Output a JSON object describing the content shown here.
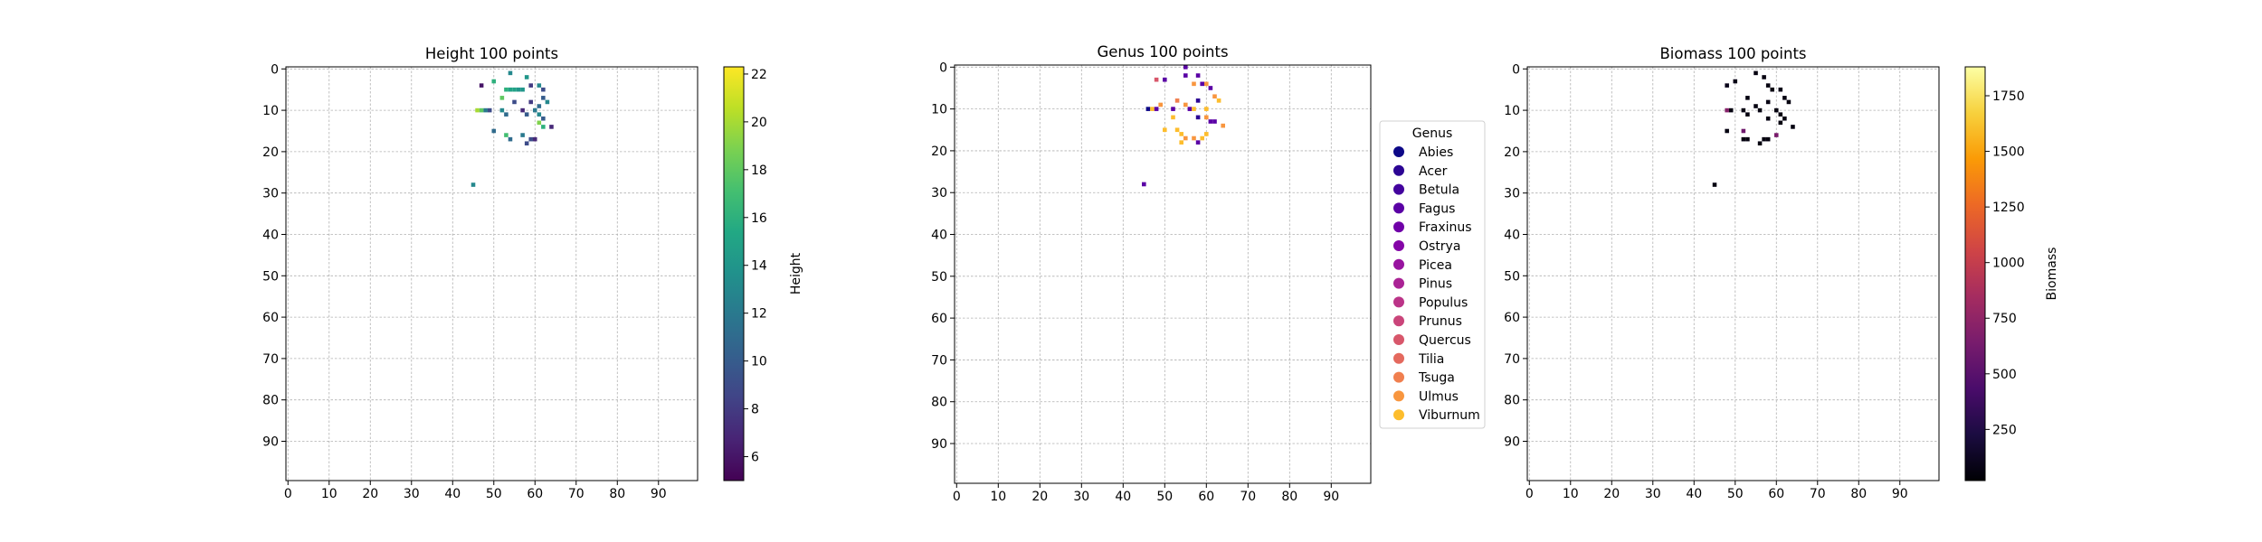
{
  "chart_data": [
    {
      "type": "heatmap",
      "title": "Height 100 points",
      "xlim": [
        0,
        100
      ],
      "ylim": [
        0,
        100
      ],
      "y_inverted": true,
      "xticks": [
        0,
        10,
        20,
        30,
        40,
        50,
        60,
        70,
        80,
        90
      ],
      "yticks": [
        0,
        10,
        20,
        30,
        40,
        50,
        60,
        70,
        80,
        90
      ],
      "grid": true,
      "colormap": "viridis",
      "colorbar": {
        "label": "Height",
        "min": 5,
        "max": 22.3,
        "ticks": [
          6,
          8,
          10,
          12,
          14,
          16,
          18,
          20,
          22
        ]
      },
      "cells": [
        {
          "x": 53,
          "y": 5,
          "value": 16
        },
        {
          "x": 54,
          "y": 5,
          "value": 15
        },
        {
          "x": 55,
          "y": 5,
          "value": 15
        },
        {
          "x": 56,
          "y": 5,
          "value": 14
        },
        {
          "x": 57,
          "y": 5,
          "value": 14
        },
        {
          "x": 54,
          "y": 1,
          "value": 13
        },
        {
          "x": 50,
          "y": 3,
          "value": 16
        },
        {
          "x": 47,
          "y": 4,
          "value": 6
        },
        {
          "x": 58,
          "y": 2,
          "value": 14
        },
        {
          "x": 59,
          "y": 4,
          "value": 8
        },
        {
          "x": 61,
          "y": 4,
          "value": 13
        },
        {
          "x": 55,
          "y": 8,
          "value": 9
        },
        {
          "x": 59,
          "y": 8,
          "value": 8
        },
        {
          "x": 62,
          "y": 5,
          "value": 9
        },
        {
          "x": 62,
          "y": 7,
          "value": 10
        },
        {
          "x": 63,
          "y": 8,
          "value": 13
        },
        {
          "x": 46,
          "y": 10,
          "value": 20
        },
        {
          "x": 47,
          "y": 10,
          "value": 18
        },
        {
          "x": 48,
          "y": 10,
          "value": 12
        },
        {
          "x": 49,
          "y": 10,
          "value": 9
        },
        {
          "x": 52,
          "y": 7,
          "value": 18
        },
        {
          "x": 52,
          "y": 10,
          "value": 13
        },
        {
          "x": 53,
          "y": 11,
          "value": 11
        },
        {
          "x": 57,
          "y": 10,
          "value": 7
        },
        {
          "x": 58,
          "y": 11,
          "value": 10
        },
        {
          "x": 60,
          "y": 10,
          "value": 12
        },
        {
          "x": 61,
          "y": 9,
          "value": 11
        },
        {
          "x": 61,
          "y": 11,
          "value": 13
        },
        {
          "x": 62,
          "y": 12,
          "value": 10
        },
        {
          "x": 61,
          "y": 13,
          "value": 19
        },
        {
          "x": 62,
          "y": 14,
          "value": 16
        },
        {
          "x": 64,
          "y": 14,
          "value": 7
        },
        {
          "x": 50,
          "y": 15,
          "value": 11
        },
        {
          "x": 53,
          "y": 16,
          "value": 17
        },
        {
          "x": 54,
          "y": 17,
          "value": 11
        },
        {
          "x": 57,
          "y": 16,
          "value": 12
        },
        {
          "x": 58,
          "y": 18,
          "value": 9
        },
        {
          "x": 59,
          "y": 17,
          "value": 9
        },
        {
          "x": 60,
          "y": 17,
          "value": 7
        },
        {
          "x": 45,
          "y": 28,
          "value": 13
        }
      ]
    },
    {
      "type": "heatmap",
      "title": "Genus 100 points",
      "xlim": [
        0,
        100
      ],
      "ylim": [
        0,
        100
      ],
      "y_inverted": true,
      "xticks": [
        0,
        10,
        20,
        30,
        40,
        50,
        60,
        70,
        80,
        90
      ],
      "yticks": [
        0,
        10,
        20,
        30,
        40,
        50,
        60,
        70,
        80,
        90
      ],
      "grid": true,
      "colormap": "plasma",
      "legend": {
        "title": "Genus",
        "placement": "right",
        "entries": [
          {
            "label": "Abies",
            "color": "#0d0887"
          },
          {
            "label": "Acer",
            "color": "#2c0594"
          },
          {
            "label": "Betula",
            "color": "#43039e"
          },
          {
            "label": "Fagus",
            "color": "#5a01a5"
          },
          {
            "label": "Fraxinus",
            "color": "#6f00a8"
          },
          {
            "label": "Ostrya",
            "color": "#8405a7"
          },
          {
            "label": "Picea",
            "color": "#9814a0"
          },
          {
            "label": "Pinus",
            "color": "#aa2395"
          },
          {
            "label": "Populus",
            "color": "#bb3488"
          },
          {
            "label": "Prunus",
            "color": "#ca457a"
          },
          {
            "label": "Quercus",
            "color": "#d8576b"
          },
          {
            "label": "Tilia",
            "color": "#e4695e"
          },
          {
            "label": "Tsuga",
            "color": "#f07f4f"
          },
          {
            "label": "Ulmus",
            "color": "#f8963f"
          },
          {
            "label": "Viburnum",
            "color": "#fdbd2d"
          }
        ]
      },
      "cells": [
        {
          "x": 55,
          "y": 0,
          "value": "Fagus"
        },
        {
          "x": 55,
          "y": 2,
          "value": "Fagus"
        },
        {
          "x": 58,
          "y": 2,
          "value": "Fagus"
        },
        {
          "x": 48,
          "y": 3,
          "value": "Quercus"
        },
        {
          "x": 50,
          "y": 3,
          "value": "Fagus"
        },
        {
          "x": 57,
          "y": 4,
          "value": "Ulmus"
        },
        {
          "x": 59,
          "y": 4,
          "value": "Fagus"
        },
        {
          "x": 60,
          "y": 4,
          "value": "Ulmus"
        },
        {
          "x": 61,
          "y": 5,
          "value": "Fagus"
        },
        {
          "x": 62,
          "y": 7,
          "value": "Ulmus"
        },
        {
          "x": 63,
          "y": 8,
          "value": "Viburnum"
        },
        {
          "x": 58,
          "y": 8,
          "value": "Acer"
        },
        {
          "x": 53,
          "y": 8,
          "value": "Tsuga"
        },
        {
          "x": 55,
          "y": 9,
          "value": "Ulmus"
        },
        {
          "x": 46,
          "y": 10,
          "value": "Abies"
        },
        {
          "x": 47,
          "y": 10,
          "value": "Viburnum"
        },
        {
          "x": 48,
          "y": 10,
          "value": "Fagus"
        },
        {
          "x": 49,
          "y": 9,
          "value": "Ulmus"
        },
        {
          "x": 52,
          "y": 10,
          "value": "Fagus"
        },
        {
          "x": 52,
          "y": 12,
          "value": "Viburnum"
        },
        {
          "x": 56,
          "y": 10,
          "value": "Fagus"
        },
        {
          "x": 57,
          "y": 10,
          "value": "Viburnum"
        },
        {
          "x": 58,
          "y": 12,
          "value": "Acer"
        },
        {
          "x": 60,
          "y": 10,
          "value": "Viburnum"
        },
        {
          "x": 60,
          "y": 12,
          "value": "Ulmus"
        },
        {
          "x": 61,
          "y": 13,
          "value": "Fagus"
        },
        {
          "x": 62,
          "y": 13,
          "value": "Fagus"
        },
        {
          "x": 64,
          "y": 14,
          "value": "Ulmus"
        },
        {
          "x": 50,
          "y": 15,
          "value": "Viburnum"
        },
        {
          "x": 53,
          "y": 15,
          "value": "Viburnum"
        },
        {
          "x": 54,
          "y": 16,
          "value": "Viburnum"
        },
        {
          "x": 54,
          "y": 18,
          "value": "Viburnum"
        },
        {
          "x": 55,
          "y": 17,
          "value": "Ulmus"
        },
        {
          "x": 57,
          "y": 17,
          "value": "Ulmus"
        },
        {
          "x": 58,
          "y": 18,
          "value": "Fagus"
        },
        {
          "x": 59,
          "y": 17,
          "value": "Viburnum"
        },
        {
          "x": 60,
          "y": 16,
          "value": "Viburnum"
        },
        {
          "x": 45,
          "y": 28,
          "value": "Fagus"
        }
      ]
    },
    {
      "type": "heatmap",
      "title": "Biomass 100 points",
      "xlim": [
        0,
        100
      ],
      "ylim": [
        0,
        100
      ],
      "y_inverted": true,
      "xticks": [
        0,
        10,
        20,
        30,
        40,
        50,
        60,
        70,
        80,
        90
      ],
      "yticks": [
        0,
        10,
        20,
        30,
        40,
        50,
        60,
        70,
        80,
        90
      ],
      "grid": true,
      "colormap": "inferno",
      "colorbar": {
        "label": "Biomass",
        "min": 20,
        "max": 1880,
        "ticks": [
          250,
          500,
          750,
          1000,
          1250,
          1500,
          1750
        ]
      },
      "cells": [
        {
          "x": 55,
          "y": 1,
          "value": 60
        },
        {
          "x": 57,
          "y": 2,
          "value": 60
        },
        {
          "x": 50,
          "y": 3,
          "value": 80
        },
        {
          "x": 48,
          "y": 4,
          "value": 90
        },
        {
          "x": 58,
          "y": 4,
          "value": 60
        },
        {
          "x": 59,
          "y": 5,
          "value": 60
        },
        {
          "x": 61,
          "y": 5,
          "value": 80
        },
        {
          "x": 53,
          "y": 7,
          "value": 60
        },
        {
          "x": 62,
          "y": 7,
          "value": 60
        },
        {
          "x": 58,
          "y": 8,
          "value": 70
        },
        {
          "x": 63,
          "y": 8,
          "value": 60
        },
        {
          "x": 48,
          "y": 10,
          "value": 700
        },
        {
          "x": 49,
          "y": 10,
          "value": 60
        },
        {
          "x": 52,
          "y": 10,
          "value": 70
        },
        {
          "x": 53,
          "y": 11,
          "value": 60
        },
        {
          "x": 55,
          "y": 9,
          "value": 60
        },
        {
          "x": 56,
          "y": 10,
          "value": 60
        },
        {
          "x": 58,
          "y": 12,
          "value": 70
        },
        {
          "x": 60,
          "y": 10,
          "value": 60
        },
        {
          "x": 61,
          "y": 11,
          "value": 60
        },
        {
          "x": 62,
          "y": 12,
          "value": 60
        },
        {
          "x": 61,
          "y": 13,
          "value": 60
        },
        {
          "x": 64,
          "y": 14,
          "value": 60
        },
        {
          "x": 48,
          "y": 15,
          "value": 60
        },
        {
          "x": 52,
          "y": 15,
          "value": 600
        },
        {
          "x": 52,
          "y": 17,
          "value": 60
        },
        {
          "x": 53,
          "y": 17,
          "value": 60
        },
        {
          "x": 56,
          "y": 18,
          "value": 60
        },
        {
          "x": 57,
          "y": 17,
          "value": 60
        },
        {
          "x": 58,
          "y": 17,
          "value": 60
        },
        {
          "x": 60,
          "y": 16,
          "value": 650
        },
        {
          "x": 45,
          "y": 28,
          "value": 60
        }
      ]
    }
  ]
}
